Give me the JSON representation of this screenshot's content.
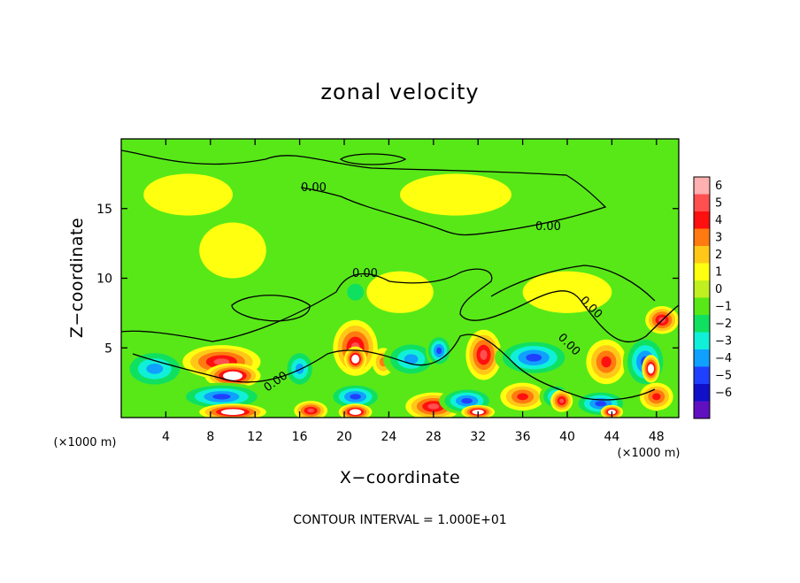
{
  "chart_data": {
    "type": "heatmap",
    "title": "zonal velocity",
    "xlabel": "X−coordinate",
    "ylabel": "Z−coordinate",
    "x_unit_left": "(×1000 m)",
    "x_unit_right": "(×1000 m)",
    "xlim": [
      0,
      50
    ],
    "ylim": [
      0,
      20
    ],
    "x_ticks": [
      4,
      8,
      12,
      16,
      20,
      24,
      28,
      32,
      36,
      40,
      44,
      48
    ],
    "y_ticks": [
      5,
      10,
      15
    ],
    "colorbar": {
      "ticks": [
        6,
        5,
        4,
        3,
        2,
        1,
        0,
        -1,
        -2,
        -3,
        -4,
        -5,
        -6
      ],
      "tick_labels": [
        "6",
        "5",
        "4",
        "3",
        "2",
        "1",
        "0",
        "−1",
        "−2",
        "−3",
        "−4",
        "−5",
        "−6"
      ],
      "colors": [
        "#ffb0b0",
        "#ff5050",
        "#ff1010",
        "#ff7a10",
        "#ffc818",
        "#ffff10",
        "#c0f020",
        "#58e818",
        "#10e060",
        "#10f0d8",
        "#10a0ff",
        "#2040ff",
        "#1010c8",
        "#6010c0"
      ]
    },
    "contour_labels": [
      "0.00",
      "0.00",
      "0.00",
      "0.00",
      "0.00",
      "0.00"
    ],
    "footer": "CONTOUR INTERVAL = 1.000E+01",
    "blobs": [
      {
        "x": 3,
        "y": 3.5,
        "rx": 3,
        "ry": 1.5,
        "v": -3.5
      },
      {
        "x": 9,
        "y": 4,
        "rx": 3.5,
        "ry": 1.2,
        "v": 4.5
      },
      {
        "x": 10,
        "y": 3,
        "rx": 2.5,
        "ry": 0.9,
        "v": 6
      },
      {
        "x": 9,
        "y": 1.5,
        "rx": 4,
        "ry": 1.0,
        "v": -4.5
      },
      {
        "x": 10,
        "y": 0.4,
        "rx": 3,
        "ry": 0.6,
        "v": 6
      },
      {
        "x": 16,
        "y": 3.5,
        "rx": 1.5,
        "ry": 1.5,
        "v": -3.5
      },
      {
        "x": 17,
        "y": 0.5,
        "rx": 1.5,
        "ry": 0.7,
        "v": 4.5
      },
      {
        "x": 21,
        "y": 5,
        "rx": 2.0,
        "ry": 2.0,
        "v": 4.5
      },
      {
        "x": 21,
        "y": 4.2,
        "rx": 1.0,
        "ry": 0.9,
        "v": 6
      },
      {
        "x": 21,
        "y": 1.5,
        "rx": 2.5,
        "ry": 1.0,
        "v": -4.5
      },
      {
        "x": 21,
        "y": 0.4,
        "rx": 1.5,
        "ry": 0.6,
        "v": 6
      },
      {
        "x": 23.5,
        "y": 4,
        "rx": 1.0,
        "ry": 1.0,
        "v": 2.5
      },
      {
        "x": 26,
        "y": 4.2,
        "rx": 2.5,
        "ry": 1.4,
        "v": -4
      },
      {
        "x": 28.5,
        "y": 4.8,
        "rx": 1.2,
        "ry": 1.2,
        "v": -5
      },
      {
        "x": 28,
        "y": 0.8,
        "rx": 2.5,
        "ry": 1.0,
        "v": 4.5
      },
      {
        "x": 32.5,
        "y": 4.5,
        "rx": 1.6,
        "ry": 1.8,
        "v": 4.5
      },
      {
        "x": 31,
        "y": 1.2,
        "rx": 2.5,
        "ry": 1.0,
        "v": -4.5
      },
      {
        "x": 32,
        "y": 0.4,
        "rx": 1.5,
        "ry": 0.5,
        "v": 6
      },
      {
        "x": 37,
        "y": 4.3,
        "rx": 3.5,
        "ry": 1.4,
        "v": -5
      },
      {
        "x": 36,
        "y": 1.5,
        "rx": 2.0,
        "ry": 1.0,
        "v": 4
      },
      {
        "x": 39,
        "y": 1.5,
        "rx": 1.5,
        "ry": 1.0,
        "v": -4
      },
      {
        "x": 39.5,
        "y": 1.2,
        "rx": 1.0,
        "ry": 0.8,
        "v": 4.5
      },
      {
        "x": 43.5,
        "y": 4,
        "rx": 1.8,
        "ry": 1.6,
        "v": 3.5
      },
      {
        "x": 43,
        "y": 1.0,
        "rx": 2.5,
        "ry": 1.0,
        "v": -4.5
      },
      {
        "x": 44,
        "y": 0.4,
        "rx": 1.0,
        "ry": 0.5,
        "v": 6
      },
      {
        "x": 47,
        "y": 4,
        "rx": 2.0,
        "ry": 2.0,
        "v": -5
      },
      {
        "x": 47.5,
        "y": 3.5,
        "rx": 0.8,
        "ry": 1.0,
        "v": 6
      },
      {
        "x": 48.5,
        "y": 7,
        "rx": 1.5,
        "ry": 1.0,
        "v": 4.5
      },
      {
        "x": 48,
        "y": 1.5,
        "rx": 1.5,
        "ry": 1.0,
        "v": 4
      },
      {
        "x": 21,
        "y": 9,
        "rx": 1.5,
        "ry": 1.2,
        "v": -1.5
      },
      {
        "x": 25,
        "y": 9,
        "rx": 3.0,
        "ry": 1.5,
        "v": 1
      },
      {
        "x": 10,
        "y": 12,
        "rx": 3.0,
        "ry": 2.0,
        "v": 1.4
      },
      {
        "x": 30,
        "y": 16,
        "rx": 5.0,
        "ry": 1.5,
        "v": 0.5
      },
      {
        "x": 6,
        "y": 16,
        "rx": 4.0,
        "ry": 1.5,
        "v": 0.8
      },
      {
        "x": 40,
        "y": 9,
        "rx": 4.0,
        "ry": 1.5,
        "v": 0.7
      }
    ]
  }
}
